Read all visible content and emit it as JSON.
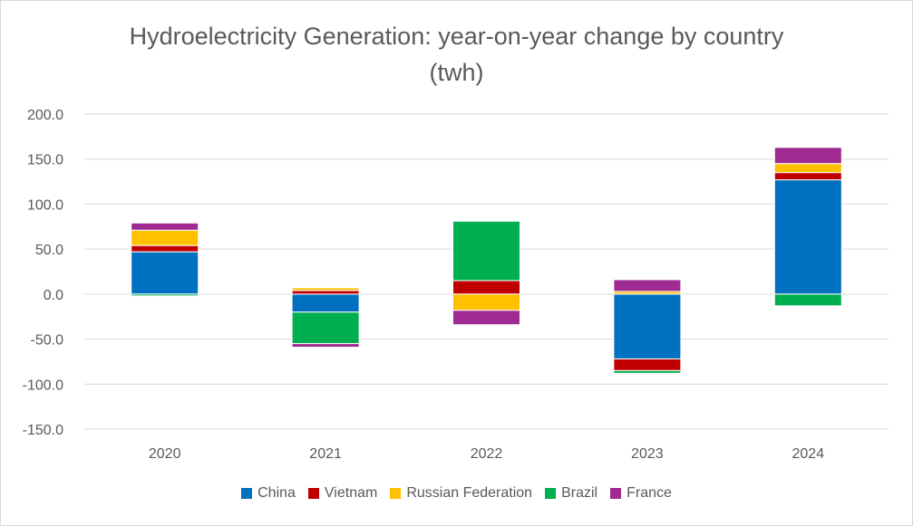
{
  "chart_data": {
    "type": "bar",
    "stacked": true,
    "title_lines": [
      "Hydroelectricity Generation: year-on-year change by country",
      "(twh)"
    ],
    "categories": [
      "2020",
      "2021",
      "2022",
      "2023",
      "2024"
    ],
    "series": [
      {
        "name": "China",
        "color": "#0070C0",
        "values": [
          47,
          -20,
          0,
          -72,
          127
        ]
      },
      {
        "name": "Vietnam",
        "color": "#C00000",
        "values": [
          7,
          4,
          15,
          -13,
          8
        ]
      },
      {
        "name": "Russian Federation",
        "color": "#FFC000",
        "values": [
          17,
          3,
          -18,
          3,
          10
        ]
      },
      {
        "name": "Brazil",
        "color": "#00B050",
        "values": [
          -2,
          -35,
          66,
          -3,
          -13
        ]
      },
      {
        "name": "France",
        "color": "#A02B93",
        "values": [
          8,
          -4,
          -16,
          13,
          18
        ]
      }
    ],
    "ylim": [
      -150,
      200
    ],
    "yticks": [
      200,
      150,
      100,
      50,
      0,
      -50,
      -100,
      -150
    ],
    "ytick_labels": [
      "200.0",
      "150.0",
      "100.0",
      "50.0",
      "0.0",
      "-50.0",
      "-100.0",
      "-150.0"
    ],
    "grid": true,
    "legend_position": "bottom",
    "xlabel": "",
    "ylabel": ""
  }
}
